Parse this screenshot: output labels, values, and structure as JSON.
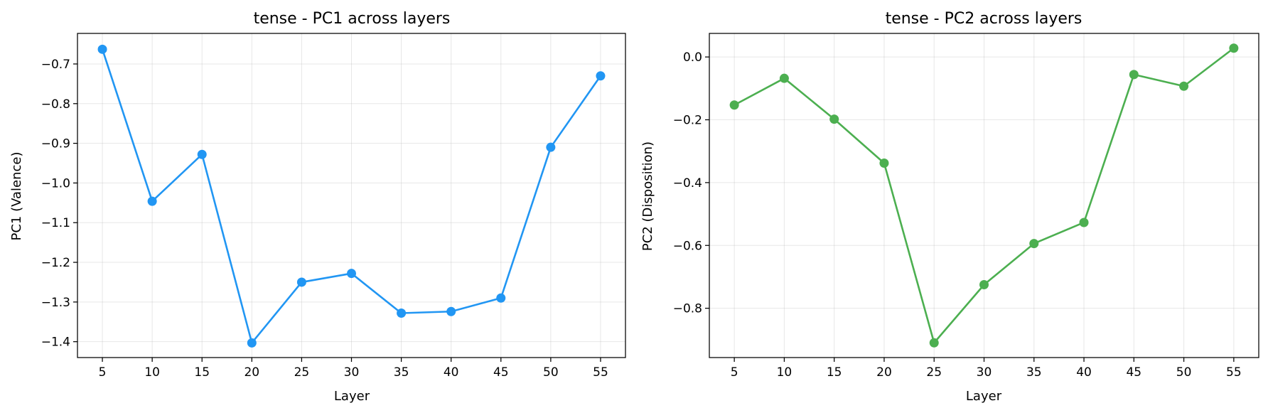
{
  "chart_data": [
    {
      "type": "line",
      "title": "tense - PC1 across layers",
      "xlabel": "Layer",
      "ylabel": "PC1 (Valence)",
      "x": [
        5,
        10,
        15,
        20,
        25,
        30,
        35,
        40,
        45,
        50,
        55
      ],
      "xticks": [
        "5",
        "10",
        "15",
        "20",
        "25",
        "30",
        "35",
        "40",
        "45",
        "50",
        "55"
      ],
      "yticks": [
        "−1.4",
        "−1.3",
        "−1.2",
        "−1.1",
        "−1.0",
        "−0.9",
        "−0.8",
        "−0.7"
      ],
      "ytick_values": [
        -1.4,
        -1.3,
        -1.2,
        -1.1,
        -1.0,
        -0.9,
        -0.8,
        -0.7
      ],
      "xlim": [
        2.5,
        57.5
      ],
      "ylim": [
        -1.44,
        -0.623
      ],
      "grid": true,
      "color": "#2196F3",
      "series": [
        {
          "values": [
            -0.663,
            -1.046,
            -0.928,
            -1.403,
            -1.25,
            -1.228,
            -1.328,
            -1.324,
            -1.29,
            -0.91,
            -0.73
          ]
        }
      ]
    },
    {
      "type": "line",
      "title": "tense - PC2 across layers",
      "xlabel": "Layer",
      "ylabel": "PC2 (Disposition)",
      "x": [
        5,
        10,
        15,
        20,
        25,
        30,
        35,
        40,
        45,
        50,
        55
      ],
      "xticks": [
        "5",
        "10",
        "15",
        "20",
        "25",
        "30",
        "35",
        "40",
        "45",
        "50",
        "55"
      ],
      "yticks": [
        "−0.8",
        "−0.6",
        "−0.4",
        "−0.2",
        "0.0"
      ],
      "ytick_values": [
        -0.8,
        -0.6,
        -0.4,
        -0.2,
        0.0
      ],
      "xlim": [
        2.5,
        57.5
      ],
      "ylim": [
        -0.957,
        0.075
      ],
      "grid": true,
      "color": "#4CAF50",
      "series": [
        {
          "values": [
            -0.153,
            -0.068,
            -0.198,
            -0.338,
            -0.91,
            -0.725,
            -0.594,
            -0.527,
            -0.056,
            -0.093,
            0.028
          ]
        }
      ]
    }
  ]
}
